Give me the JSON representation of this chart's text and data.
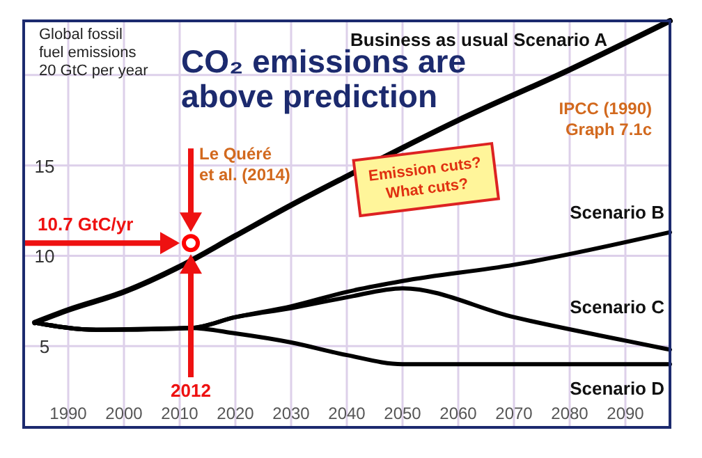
{
  "chart_data": {
    "type": "line",
    "title": "CO₂ emissions are above prediction",
    "ylabel": "Global fossil fuel emissions 20 GtC per year",
    "xlim": [
      1982,
      2098
    ],
    "xticks": [
      1990,
      2000,
      2010,
      2020,
      2030,
      2040,
      2050,
      2060,
      2070,
      2080,
      2090
    ],
    "ylim": [
      0.5,
      23
    ],
    "yticks": [
      5,
      10,
      15,
      {
        "value": 20,
        "label": null
      }
    ],
    "grid": true,
    "marker": "none",
    "line_style": "solid",
    "series": [
      {
        "name": "Business as usual Scenario A",
        "color": "#000000",
        "x": [
          1984,
          1990,
          2000,
          2010,
          2020,
          2030,
          2040,
          2060,
          2080,
          2098
        ],
        "values": [
          6.3,
          7.0,
          8.0,
          9.4,
          11.1,
          12.8,
          14.4,
          17.5,
          20.3,
          23
        ]
      },
      {
        "name": "Scenario B",
        "color": "#000000",
        "x": [
          1984,
          1995,
          2012,
          2020,
          2030,
          2040,
          2050,
          2070,
          2098
        ],
        "values": [
          6.3,
          5.9,
          6.0,
          6.6,
          7.2,
          8.0,
          8.6,
          9.5,
          11.3
        ]
      },
      {
        "name": "Scenario C",
        "color": "#000000",
        "x": [
          1984,
          1995,
          2012,
          2020,
          2030,
          2040,
          2050,
          2070,
          2090,
          2098
        ],
        "values": [
          6.3,
          5.9,
          6.0,
          6.6,
          7.1,
          7.7,
          8.2,
          6.6,
          5.3,
          4.8
        ]
      },
      {
        "name": "Scenario D",
        "color": "#000000",
        "x": [
          1984,
          1995,
          2012,
          2020,
          2030,
          2040,
          2050,
          2098
        ],
        "values": [
          6.3,
          5.9,
          6.0,
          5.7,
          5.2,
          4.5,
          4.0,
          4.0
        ]
      },
      {
        "type": "scatter",
        "color": "#ff0000",
        "marker": "circle",
        "x": [
          2012
        ],
        "values": [
          10.7
        ]
      }
    ],
    "annotations": [
      "10.7 GtC/yr",
      "Le Quéré et al. (2014)",
      "2012",
      "IPCC (1990) Graph 7.1c",
      "Emission cuts? What cuts?"
    ]
  }
}
